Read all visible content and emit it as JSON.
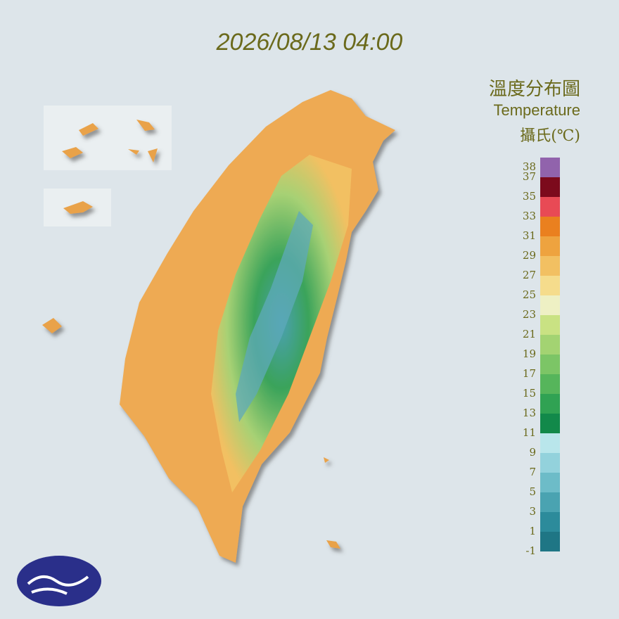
{
  "header": {
    "timestamp": "2026/08/13 04:00"
  },
  "legend": {
    "title": "溫度分布圖",
    "subtitle": "Temperature",
    "unit": "攝氏(℃)",
    "lim": [
      -1,
      39
    ],
    "ticks": [
      38,
      37,
      35,
      33,
      31,
      29,
      27,
      25,
      23,
      21,
      19,
      17,
      15,
      13,
      11,
      9,
      7,
      5,
      3,
      1,
      -1
    ],
    "colors": [
      "#1f7685",
      "#2c8b9b",
      "#4aa3b1",
      "#6dbcc8",
      "#93d2dc",
      "#b9e6eb",
      "#12894a",
      "#30a253",
      "#56b55b",
      "#7cc566",
      "#a3d372",
      "#c9e283",
      "#eef0c4",
      "#f5dc8c",
      "#f2c062",
      "#eea33f",
      "#ea801f",
      "#e84a55",
      "#7c0a1c",
      "#9163ac"
    ]
  }
}
